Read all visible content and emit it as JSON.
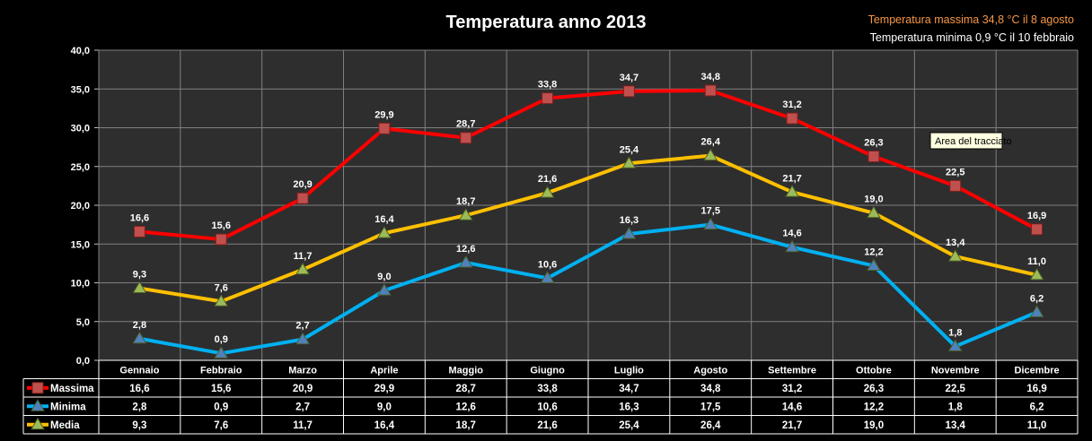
{
  "tooltip": "Area del tracciato",
  "colors": {
    "background": "#000000",
    "plot_area": "#2e2e2e",
    "grid": "#808080",
    "note_max": "#f79646",
    "note_min": "#ffffff"
  },
  "chart_data": {
    "type": "line",
    "title": "Temperatura anno 2013",
    "annotations": [
      "Temperatura massima  34,8 °C il 8 agosto",
      "Temperatura minima  0,9 °C il 10 febbraio"
    ],
    "categories": [
      "Gennaio",
      "Febbraio",
      "Marzo",
      "Aprile",
      "Maggio",
      "Giugno",
      "Luglio",
      "Agosto",
      "Settembre",
      "Ottobre",
      "Novembre",
      "Dicembre"
    ],
    "ylim": [
      0,
      40
    ],
    "ytick_labels": [
      "0,0",
      "5,0",
      "10,0",
      "15,0",
      "20,0",
      "25,0",
      "30,0",
      "35,0",
      "40,0"
    ],
    "grid": true,
    "data_table": true,
    "series": [
      {
        "name": "Massima",
        "color": "#ff0000",
        "marker": "square",
        "marker_color": "#c0504d",
        "values": [
          16.6,
          15.6,
          20.9,
          29.9,
          28.7,
          33.8,
          34.7,
          34.8,
          31.2,
          26.3,
          22.5,
          16.9
        ],
        "labels": [
          "16,6",
          "15,6",
          "20,9",
          "29,9",
          "28,7",
          "33,8",
          "34,7",
          "34,8",
          "31,2",
          "26,3",
          "22,5",
          "16,9"
        ]
      },
      {
        "name": "Minima",
        "color": "#00b0f0",
        "marker": "triangle",
        "marker_color": "#4f81bd",
        "values": [
          2.8,
          0.9,
          2.7,
          9.0,
          12.6,
          10.6,
          16.3,
          17.5,
          14.6,
          12.2,
          1.8,
          6.2
        ],
        "labels": [
          "2,8",
          "0,9",
          "2,7",
          "9,0",
          "12,6",
          "10,6",
          "16,3",
          "17,5",
          "14,6",
          "12,2",
          "1,8",
          "6,2"
        ]
      },
      {
        "name": "Media",
        "color": "#ffc000",
        "marker": "triangle",
        "marker_color": "#9bbb59",
        "values": [
          9.3,
          7.6,
          11.7,
          16.4,
          18.7,
          21.6,
          25.4,
          26.4,
          21.7,
          19.0,
          13.4,
          11.0
        ],
        "labels": [
          "9,3",
          "7,6",
          "11,7",
          "16,4",
          "18,7",
          "21,6",
          "25,4",
          "26,4",
          "21,7",
          "19,0",
          "13,4",
          "11,0"
        ]
      }
    ]
  }
}
